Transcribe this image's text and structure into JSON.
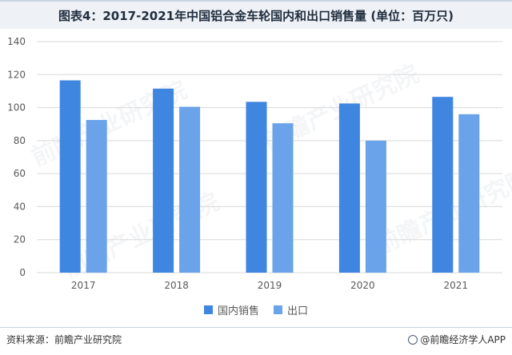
{
  "title": "图表4：2017-2021年中国铝合金车轮国内和出口销售量 (单位：百万只)",
  "colors": {
    "domestic": "#3f86e0",
    "export": "#6aa3ea",
    "grid": "#d9d9d9"
  },
  "chart_data": {
    "type": "bar",
    "title": "图表4：2017-2021年中国铝合金车轮国内和出口销售量 (单位：百万只)",
    "categories": [
      "2017",
      "2018",
      "2019",
      "2020",
      "2021"
    ],
    "series": [
      {
        "name": "国内销售",
        "values": [
          116.5,
          111.5,
          103.5,
          102.5,
          106.5
        ]
      },
      {
        "name": "出口",
        "values": [
          92.5,
          100.5,
          90.5,
          80,
          96
        ]
      }
    ],
    "yticks": [
      "0",
      "20",
      "40",
      "60",
      "80",
      "100",
      "120",
      "140"
    ],
    "ylim": [
      0,
      140
    ],
    "grid": true,
    "legend": "bottom"
  },
  "footer": {
    "source": "资料来源：前瞻产业研究院",
    "brand": "@前瞻经济学人APP"
  },
  "watermark_text": "前瞻产业研究院"
}
